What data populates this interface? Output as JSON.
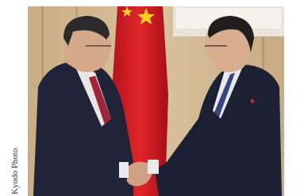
{
  "photo": {
    "credit": "Kyodo Photo"
  }
}
